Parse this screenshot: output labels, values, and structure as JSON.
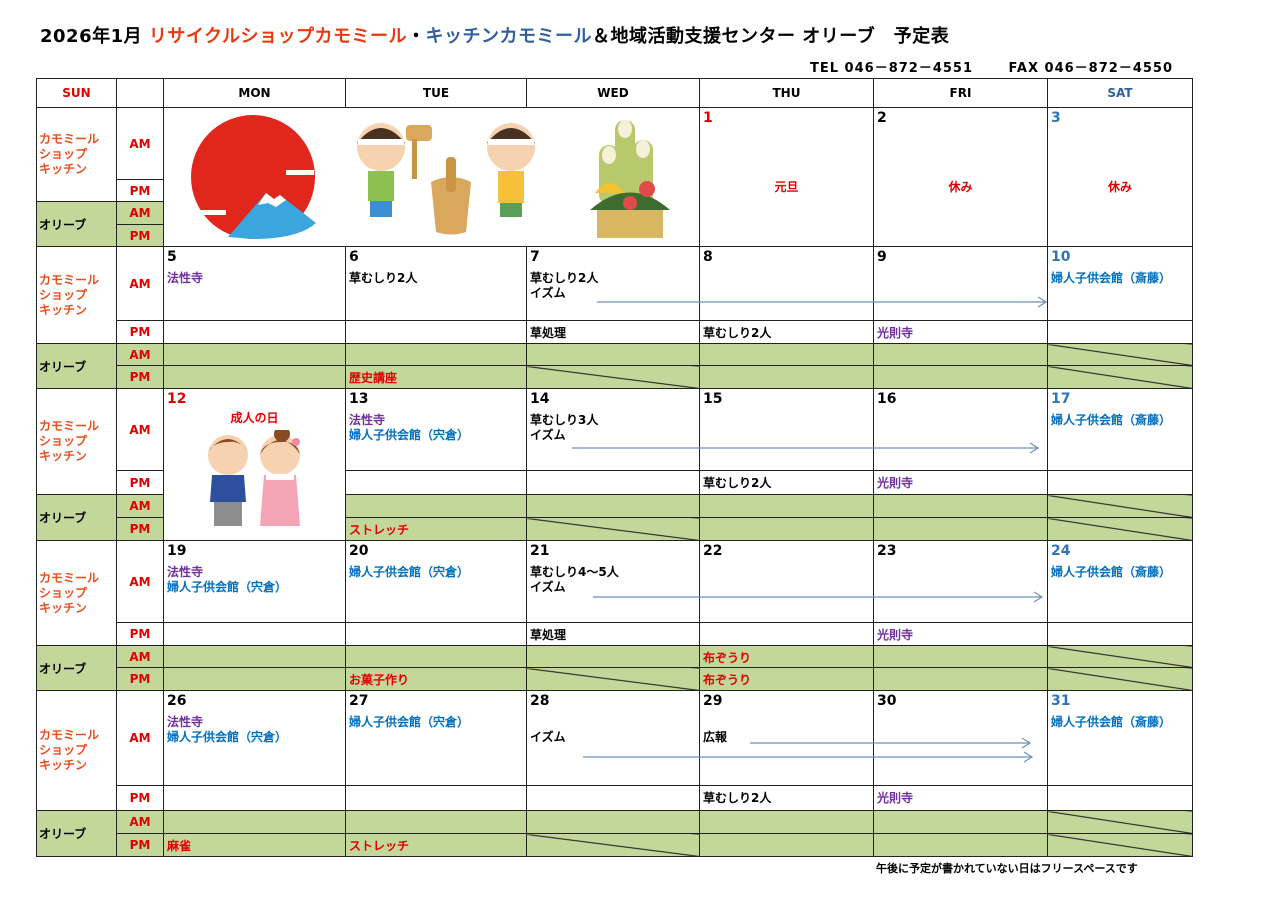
{
  "header": {
    "title_prefix": "2026年1月",
    "title_shop": "リサイクルショップカモミール",
    "title_dot": "・",
    "title_kitchen": "キッチンカモミール",
    "title_suffix": "＆地域活動支援センター オリーブ　予定表",
    "tel": "TEL 046－872－4551",
    "fax": "FAX 046－872－4550"
  },
  "columns": [
    "SUN",
    "",
    "MON",
    "TUE",
    "WED",
    "THU",
    "FRI",
    "SAT"
  ],
  "row_labels": {
    "kamomile": [
      "カモミール",
      "ショップ",
      "キッチン"
    ],
    "olive": "オリーブ",
    "am": "AM",
    "pm": "PM"
  },
  "colors": {
    "green": "#c4d79b",
    "red": "#e00000",
    "orange": "#e8501e",
    "purple": "#7030a0",
    "blue": "#0070c0",
    "sat_blue": "#2e75b6",
    "black": "#000000"
  },
  "week1": {
    "illustrations": [
      "rising-sun-fuji",
      "mochi-pounding-kids",
      "kadomatsu"
    ],
    "days": [
      {
        "date": "1",
        "date_color": "red",
        "text": "元旦"
      },
      {
        "date": "2",
        "date_color": "black",
        "text": "休み"
      },
      {
        "date": "3",
        "date_color": "sat_blue",
        "text": "休み"
      }
    ]
  },
  "weeks": [
    {
      "days": [
        {
          "date": "5",
          "date_color": "black",
          "am": [
            {
              "t": "法性寺",
              "c": "purple"
            }
          ],
          "pm": [],
          "oam": [],
          "opm": []
        },
        {
          "date": "6",
          "date_color": "black",
          "am": [
            {
              "t": "草むしり2人",
              "c": "black"
            }
          ],
          "pm": [],
          "oam": [],
          "opm": [
            {
              "t": "歴史講座",
              "c": "red"
            }
          ]
        },
        {
          "date": "7",
          "date_color": "black",
          "am": [
            {
              "t": "草むしり2人",
              "c": "black"
            },
            {
              "t": "イズム",
              "c": "black"
            }
          ],
          "pm": [
            {
              "t": "草処理",
              "c": "black"
            }
          ],
          "oam": [],
          "opm": [],
          "opm_crossed": true
        },
        {
          "date": "8",
          "date_color": "black",
          "am": [],
          "pm": [
            {
              "t": "草むしり2人",
              "c": "black"
            }
          ],
          "oam": [],
          "opm": []
        },
        {
          "date": "9",
          "date_color": "black",
          "am": [],
          "pm": [
            {
              "t": "光則寺",
              "c": "purple"
            }
          ],
          "oam": [],
          "opm": []
        },
        {
          "date": "10",
          "date_color": "sat_blue",
          "am": [
            {
              "t": "婦人子供会館（斎藤）",
              "c": "blue"
            }
          ],
          "pm": [],
          "oam": [],
          "opm": [],
          "oam_crossed": true,
          "opm_crossed": true
        }
      ]
    },
    {
      "mon_special": {
        "date": "12",
        "date_color": "red",
        "text": "成人の日",
        "illustration": "coming-of-age-couple"
      },
      "days": [
        null,
        {
          "date": "13",
          "date_color": "black",
          "am": [
            {
              "t": "法性寺",
              "c": "purple"
            },
            {
              "t": "婦人子供会館（宍倉）",
              "c": "blue"
            }
          ],
          "pm": [],
          "oam": [],
          "opm": [
            {
              "t": "ストレッチ",
              "c": "red"
            }
          ]
        },
        {
          "date": "14",
          "date_color": "black",
          "am": [
            {
              "t": "草むしり3人",
              "c": "black"
            },
            {
              "t": "イズム",
              "c": "black"
            }
          ],
          "pm": [],
          "oam": [],
          "opm": [],
          "opm_crossed": true
        },
        {
          "date": "15",
          "date_color": "black",
          "am": [],
          "pm": [
            {
              "t": "草むしり2人",
              "c": "black"
            }
          ],
          "oam": [],
          "opm": []
        },
        {
          "date": "16",
          "date_color": "black",
          "am": [],
          "pm": [
            {
              "t": "光則寺",
              "c": "purple"
            }
          ],
          "oam": [],
          "opm": []
        },
        {
          "date": "17",
          "date_color": "sat_blue",
          "am": [
            {
              "t": "婦人子供会館（斎藤）",
              "c": "blue"
            }
          ],
          "pm": [],
          "oam": [],
          "opm": [],
          "oam_crossed": true,
          "opm_crossed": true
        }
      ]
    },
    {
      "days": [
        {
          "date": "19",
          "date_color": "black",
          "am": [
            {
              "t": "法性寺",
              "c": "purple"
            },
            {
              "t": "婦人子供会館（宍倉）",
              "c": "blue"
            }
          ],
          "pm": [],
          "oam": [],
          "opm": []
        },
        {
          "date": "20",
          "date_color": "black",
          "am": [
            {
              "t": "  婦人子供会館（宍倉）",
              "c": "blue"
            }
          ],
          "pm": [],
          "oam": [],
          "opm": [
            {
              "t": "お菓子作り",
              "c": "red"
            }
          ]
        },
        {
          "date": "21",
          "date_color": "black",
          "am": [
            {
              "t": "草むしり4～5人",
              "c": "black"
            },
            {
              "t": "イズム",
              "c": "black"
            }
          ],
          "pm": [
            {
              "t": "草処理",
              "c": "black"
            }
          ],
          "oam": [],
          "opm": [],
          "opm_crossed": true
        },
        {
          "date": "22",
          "date_color": "black",
          "am": [],
          "pm": [],
          "oam": [
            {
              "t": "布ぞうり",
              "c": "red"
            }
          ],
          "opm": [
            {
              "t": "布ぞうり",
              "c": "red"
            }
          ]
        },
        {
          "date": "23",
          "date_color": "black",
          "am": [],
          "pm": [
            {
              "t": "光則寺",
              "c": "purple"
            }
          ],
          "oam": [],
          "opm": []
        },
        {
          "date": "24",
          "date_color": "sat_blue",
          "am": [
            {
              "t": "婦人子供会館（斎藤）",
              "c": "blue"
            }
          ],
          "pm": [],
          "oam": [],
          "opm": [],
          "oam_crossed": true,
          "opm_crossed": true
        }
      ]
    },
    {
      "days": [
        {
          "date": "26",
          "date_color": "black",
          "am": [
            {
              "t": "法性寺",
              "c": "purple"
            },
            {
              "t": "婦人子供会館（宍倉）",
              "c": "blue"
            }
          ],
          "pm": [],
          "oam": [],
          "opm": [
            {
              "t": "麻雀",
              "c": "red"
            }
          ]
        },
        {
          "date": "27",
          "date_color": "black",
          "am": [
            {
              "t": "婦人子供会館（宍倉）",
              "c": "blue"
            }
          ],
          "pm": [],
          "oam": [],
          "opm": [
            {
              "t": "ストレッチ",
              "c": "red"
            }
          ]
        },
        {
          "date": "28",
          "date_color": "black",
          "am": [
            {
              "t": "",
              "c": "black"
            },
            {
              "t": "イズム",
              "c": "black"
            }
          ],
          "pm": [],
          "oam": [],
          "opm": [],
          "opm_crossed": true
        },
        {
          "date": "29",
          "date_color": "black",
          "am": [
            {
              "t": "",
              "c": "black"
            },
            {
              "t": "広報",
              "c": "black"
            }
          ],
          "pm": [
            {
              "t": "草むしり2人",
              "c": "black"
            }
          ],
          "oam": [],
          "opm": []
        },
        {
          "date": "30",
          "date_color": "black",
          "am": [],
          "pm": [
            {
              "t": "光則寺",
              "c": "purple"
            }
          ],
          "oam": [],
          "opm": []
        },
        {
          "date": "31",
          "date_color": "sat_blue",
          "am": [
            {
              "t": "婦人子供会館（斎藤）",
              "c": "blue"
            }
          ],
          "pm": [],
          "oam": [],
          "opm": [],
          "oam_crossed": true,
          "opm_crossed": true
        }
      ]
    }
  ],
  "footnote": "午後に予定が書かれていない日はフリースペースです"
}
